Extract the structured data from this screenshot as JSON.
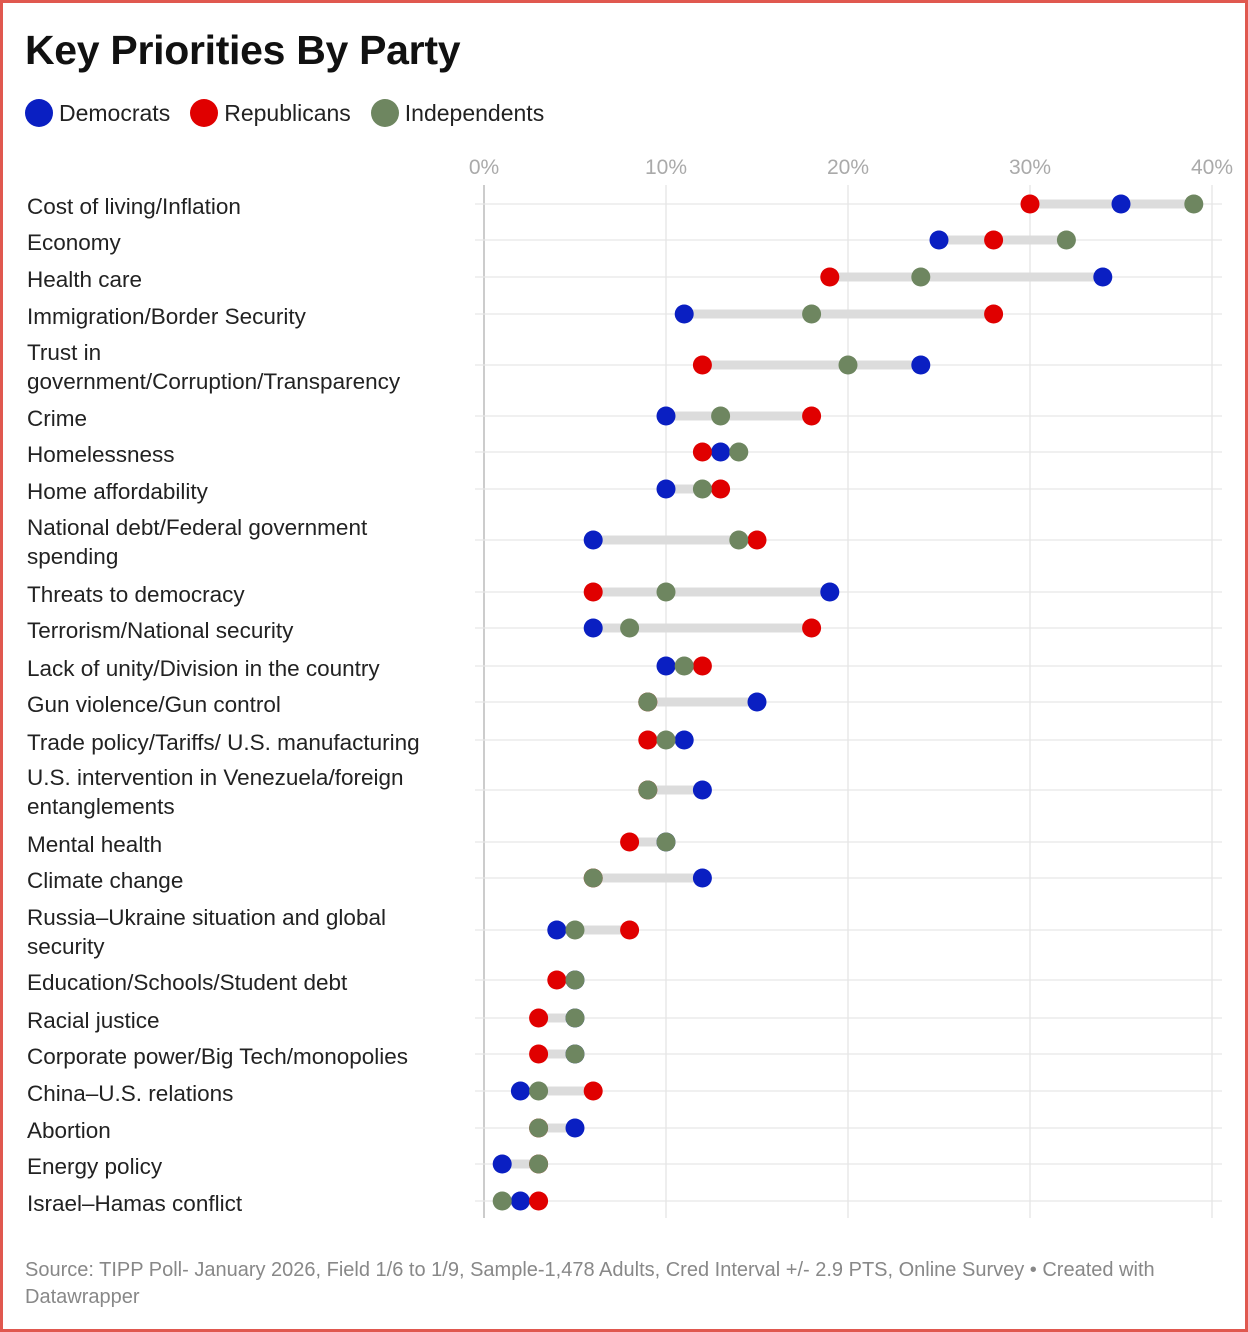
{
  "title": "Key Priorities By Party",
  "legend": [
    {
      "name": "Democrats",
      "color": "#0a1fc2"
    },
    {
      "name": "Republicans",
      "color": "#e00000"
    },
    {
      "name": "Independents",
      "color": "#6e8660"
    }
  ],
  "source": "Source: TIPP Poll- January 2026, Field 1/6 to 1/9, Sample-1,478 Adults, Cred Interval +/- 2.9 PTS, Online Survey • Created with Datawrapper",
  "chart_data": {
    "type": "dot-range",
    "title": "Key Priorities By Party",
    "x_ticks": [
      "0%",
      "10%",
      "20%",
      "30%",
      "40%"
    ],
    "xlim": [
      0,
      40
    ],
    "series_order": [
      "Democrats",
      "Republicans",
      "Independents"
    ],
    "rows": [
      {
        "label": "Cost of living/Inflation",
        "values": [
          35,
          30,
          39
        ]
      },
      {
        "label": "Economy",
        "values": [
          25,
          28,
          32
        ]
      },
      {
        "label": "Health care",
        "values": [
          34,
          19,
          24
        ]
      },
      {
        "label": "Immigration/Border Security",
        "values": [
          11,
          28,
          18
        ]
      },
      {
        "label": "Trust in government/Corruption/Transparency",
        "values": [
          24,
          12,
          20
        ]
      },
      {
        "label": "Crime",
        "values": [
          10,
          18,
          13
        ]
      },
      {
        "label": "Homelessness",
        "values": [
          13,
          12,
          14
        ]
      },
      {
        "label": "Home affordability",
        "values": [
          10,
          13,
          12
        ]
      },
      {
        "label": "National debt/Federal government spending",
        "values": [
          6,
          15,
          14
        ]
      },
      {
        "label": "Threats to democracy",
        "values": [
          19,
          6,
          10
        ]
      },
      {
        "label": "Terrorism/National security",
        "values": [
          6,
          18,
          8
        ]
      },
      {
        "label": "Lack of unity/Division in the country",
        "values": [
          10,
          12,
          11
        ]
      },
      {
        "label": "Gun violence/Gun control",
        "values": [
          15,
          9,
          9
        ]
      },
      {
        "label": "Trade policy/Tariffs/ U.S. manufacturing",
        "values": [
          11,
          9,
          10
        ]
      },
      {
        "label": "U.S. intervention in Venezuela/foreign entanglements",
        "values": [
          12,
          9,
          9
        ]
      },
      {
        "label": "Mental health",
        "values": [
          10,
          8,
          10
        ]
      },
      {
        "label": "Climate change",
        "values": [
          12,
          6,
          6
        ]
      },
      {
        "label": "Russia–Ukraine situation and global security",
        "values": [
          4,
          8,
          5
        ]
      },
      {
        "label": "Education/Schools/Student debt",
        "values": [
          5,
          4,
          5
        ]
      },
      {
        "label": "Racial justice",
        "values": [
          5,
          3,
          5
        ]
      },
      {
        "label": "Corporate power/Big Tech/monopolies",
        "values": [
          5,
          3,
          5
        ]
      },
      {
        "label": "China–U.S. relations",
        "values": [
          2,
          6,
          3
        ]
      },
      {
        "label": "Abortion",
        "values": [
          5,
          3,
          3
        ]
      },
      {
        "label": "Energy policy",
        "values": [
          1,
          3,
          3
        ]
      },
      {
        "label": "Israel–Hamas conflict",
        "values": [
          2,
          3,
          1
        ]
      }
    ]
  }
}
